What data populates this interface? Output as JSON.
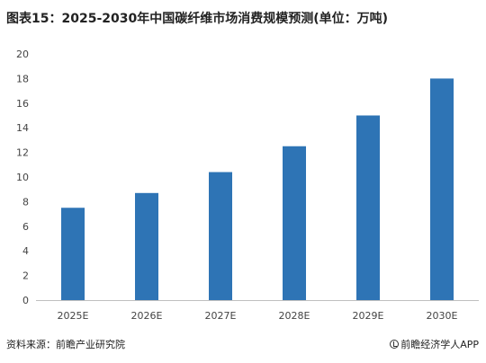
{
  "title": "图表15：2025-2030年中国碳纤维市场消费规模预测(单位：万吨)",
  "footer": {
    "source": "资料来源：前瞻产业研究院",
    "brand": "前瞻经济学人APP"
  },
  "colors": {
    "bar": "#2E74B5",
    "axis": "#BFBFBF"
  },
  "icons": {
    "brand": "brand-logo-icon"
  },
  "chart_data": {
    "type": "bar",
    "categories": [
      "2025E",
      "2026E",
      "2027E",
      "2028E",
      "2029E",
      "2030E"
    ],
    "values": [
      7.5,
      8.7,
      10.4,
      12.5,
      15.0,
      18.0
    ],
    "ylim": [
      0,
      20
    ],
    "yticks": [
      "0",
      "2",
      "4",
      "6",
      "8",
      "10",
      "12",
      "14",
      "16",
      "18",
      "20"
    ],
    "grid": false,
    "legend": "none"
  }
}
